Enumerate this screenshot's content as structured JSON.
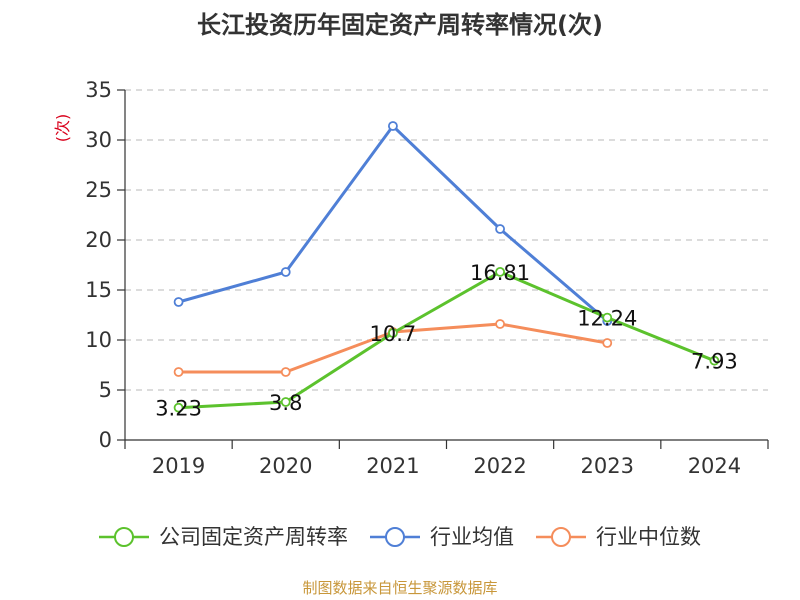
{
  "chart_data": {
    "type": "line",
    "title": "长江投资历年固定资产周转率情况(次)",
    "ylabel": "(次)",
    "xlabel": "",
    "categories": [
      "2019",
      "2020",
      "2021",
      "2022",
      "2023",
      "2024"
    ],
    "ylim": [
      0,
      35
    ],
    "yticks": [
      0,
      5,
      10,
      15,
      20,
      25,
      30,
      35
    ],
    "grid": true,
    "legend_position": "bottom",
    "series": [
      {
        "name": "公司固定资产周转率",
        "color": "#5cc22d",
        "values": [
          3.23,
          3.8,
          10.7,
          16.81,
          12.24,
          7.93
        ],
        "labels": [
          "3.23",
          "3.8",
          "10.7",
          "16.81",
          "12.24",
          "7.93"
        ]
      },
      {
        "name": "行业均值",
        "color": "#4f7fd6",
        "values": [
          13.8,
          16.8,
          31.4,
          21.1,
          11.9,
          null
        ]
      },
      {
        "name": "行业中位数",
        "color": "#f58d5b",
        "values": [
          6.8,
          6.8,
          10.8,
          11.6,
          9.7,
          null
        ]
      }
    ],
    "source": "制图数据来自恒生聚源数据库"
  }
}
